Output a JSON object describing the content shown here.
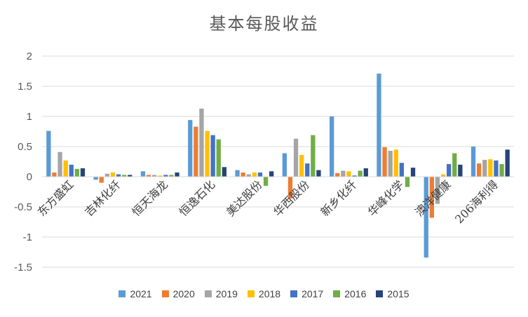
{
  "chart_data": {
    "type": "bar",
    "title": "基本每股收益",
    "xlabel": "",
    "ylabel": "",
    "ylim": [
      -1.5,
      2
    ],
    "yticks": [
      "-1.5",
      "-1",
      "-0.5",
      "0",
      "0.5",
      "1",
      "1.5",
      "2"
    ],
    "grid": true,
    "legend_position": "bottom",
    "categories": [
      "东方盛虹",
      "吉林化纤",
      "恒天海龙",
      "恒逸石化",
      "美达股份",
      "华西股份",
      "新乡化纤",
      "华峰化学",
      "澳洋健康",
      "206海利得"
    ],
    "series": [
      {
        "name": "2021",
        "color": "#5B9BD5",
        "values": [
          0.76,
          -0.05,
          0.09,
          0.94,
          0.11,
          0.39,
          1.0,
          1.71,
          -1.34,
          0.5
        ]
      },
      {
        "name": "2020",
        "color": "#ED7D31",
        "values": [
          0.07,
          -0.1,
          0.03,
          0.83,
          0.07,
          -0.36,
          0.06,
          0.49,
          -0.68,
          0.22
        ]
      },
      {
        "name": "2019",
        "color": "#A5A5A5",
        "values": [
          0.41,
          0.05,
          0.03,
          1.13,
          0.04,
          0.63,
          0.1,
          0.43,
          -0.45,
          0.28
        ]
      },
      {
        "name": "2018",
        "color": "#FFC000",
        "values": [
          0.27,
          0.07,
          0.02,
          0.76,
          0.07,
          0.36,
          0.09,
          0.45,
          0.04,
          0.29
        ]
      },
      {
        "name": "2017",
        "color": "#4472C4",
        "values": [
          0.2,
          0.04,
          0.03,
          0.69,
          0.07,
          0.22,
          0.02,
          0.23,
          0.21,
          0.27
        ]
      },
      {
        "name": "2016",
        "color": "#70AD47",
        "values": [
          0.13,
          0.03,
          0.03,
          0.62,
          -0.15,
          0.69,
          0.1,
          -0.17,
          0.39,
          0.21
        ]
      },
      {
        "name": "2015",
        "color": "#264478",
        "values": [
          0.14,
          0.03,
          0.07,
          0.16,
          0.09,
          0.11,
          0.14,
          0.15,
          0.2,
          0.45
        ]
      }
    ]
  }
}
